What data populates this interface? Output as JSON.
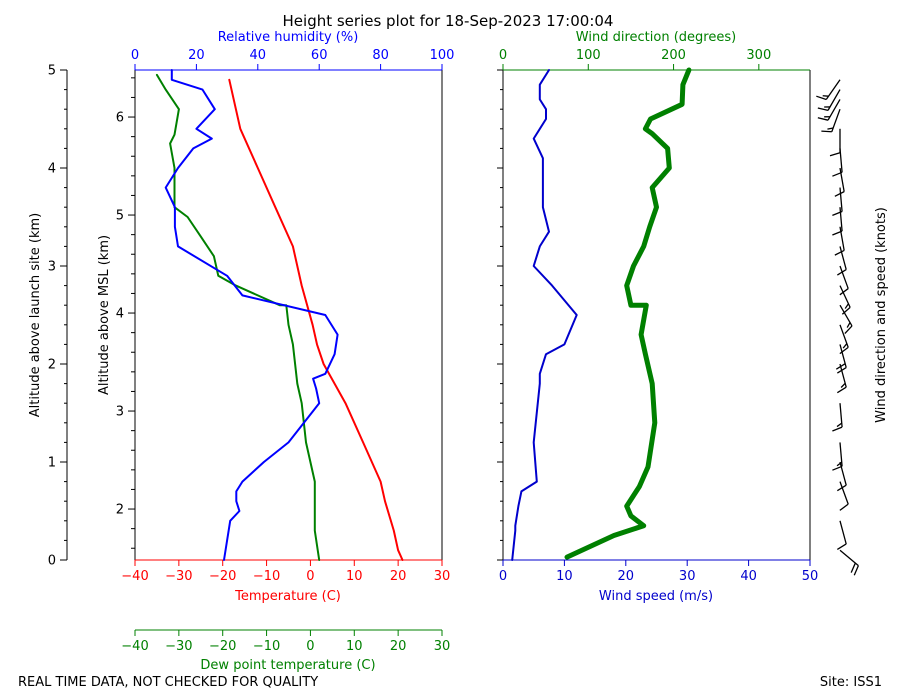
{
  "title": "Height series plot for 18-Sep-2023 17:00:04",
  "footer": {
    "left": "REAL TIME DATA, NOT CHECKED FOR QUALITY",
    "right": "Site: ISS1"
  },
  "colors": {
    "temperature": "#ff0000",
    "dewpoint": "#008000",
    "humidity": "#0000ff",
    "wind_speed": "#0000cc",
    "wind_direction": "#008000",
    "barbs": "#000000"
  },
  "axes": {
    "alt_launch": {
      "label": "Altitude above launch site (km)",
      "range": [
        0,
        5
      ],
      "ticks": [
        0,
        1,
        2,
        3,
        4,
        5
      ]
    },
    "alt_msl": {
      "label": "Altitude above MSL (km)",
      "range": [
        1.48,
        6.48
      ],
      "ticks": [
        {
          "v": 2,
          "t": "2"
        },
        {
          "v": 3,
          "t": "3"
        },
        {
          "v": 4,
          "t": "4"
        },
        {
          "v": 5,
          "t": "5"
        },
        {
          "v": 6,
          "t": "6"
        }
      ]
    },
    "temperature": {
      "label": "Temperature (C)",
      "range": [
        -40,
        30
      ],
      "ticks": [
        {
          "v": -40,
          "t": "−40"
        },
        {
          "v": -30,
          "t": "−30"
        },
        {
          "v": -20,
          "t": "−20"
        },
        {
          "v": -10,
          "t": "−10"
        },
        {
          "v": 0,
          "t": "0"
        },
        {
          "v": 10,
          "t": "10"
        },
        {
          "v": 20,
          "t": "20"
        },
        {
          "v": 30,
          "t": "30"
        }
      ]
    },
    "dewpoint": {
      "label": "Dew point temperature (C)",
      "range": [
        -40,
        30
      ],
      "ticks": [
        {
          "v": -40,
          "t": "−40"
        },
        {
          "v": -30,
          "t": "−30"
        },
        {
          "v": -20,
          "t": "−20"
        },
        {
          "v": -10,
          "t": "−10"
        },
        {
          "v": 0,
          "t": "0"
        },
        {
          "v": 10,
          "t": "10"
        },
        {
          "v": 20,
          "t": "20"
        },
        {
          "v": 30,
          "t": "30"
        }
      ]
    },
    "humidity": {
      "label": "Relative humidity (%)",
      "range": [
        0,
        100
      ],
      "ticks": [
        {
          "v": 0,
          "t": "0"
        },
        {
          "v": 20,
          "t": "20"
        },
        {
          "v": 40,
          "t": "40"
        },
        {
          "v": 60,
          "t": "60"
        },
        {
          "v": 80,
          "t": "80"
        },
        {
          "v": 100,
          "t": "100"
        }
      ]
    },
    "wind_speed": {
      "label": "Wind speed (m/s)",
      "range": [
        0,
        50
      ],
      "ticks": [
        {
          "v": 0,
          "t": "0"
        },
        {
          "v": 10,
          "t": "10"
        },
        {
          "v": 20,
          "t": "20"
        },
        {
          "v": 30,
          "t": "30"
        },
        {
          "v": 40,
          "t": "40"
        },
        {
          "v": 50,
          "t": "50"
        }
      ]
    },
    "wind_direction": {
      "label": "Wind direction (degrees)",
      "range": [
        0,
        360
      ],
      "ticks": [
        {
          "v": 0,
          "t": "0"
        },
        {
          "v": 100,
          "t": "100"
        },
        {
          "v": 200,
          "t": "200"
        },
        {
          "v": 300,
          "t": "300"
        }
      ]
    },
    "barb_label": "Wind direction and speed (knots)"
  },
  "chart_data": {
    "type": "line",
    "title": "Height series plot for 18-Sep-2023 17:00:04",
    "series": [
      {
        "name": "Temperature (C)",
        "x": [
          21,
          20,
          19,
          17,
          16,
          12,
          8,
          3,
          1.5,
          0.5,
          -2,
          -4,
          -8,
          -12,
          -16,
          -17,
          -18.5
        ],
        "y": [
          0,
          0.1,
          0.3,
          0.6,
          0.8,
          1.2,
          1.6,
          2.0,
          2.2,
          2.4,
          2.8,
          3.2,
          3.6,
          4.0,
          4.4,
          4.6,
          4.9
        ]
      },
      {
        "name": "Dew point temperature (C)",
        "x": [
          2,
          1,
          1,
          -1,
          -2,
          -3,
          -3.5,
          -4,
          -5,
          -5.5,
          -7,
          -17,
          -21,
          -22,
          -25,
          -28,
          -31,
          -31,
          -31,
          -32,
          -31,
          -30,
          -33,
          -35
        ],
        "y": [
          0,
          0.3,
          0.8,
          1.2,
          1.6,
          1.8,
          2.0,
          2.2,
          2.4,
          2.6,
          2.6,
          2.8,
          2.9,
          3.1,
          3.3,
          3.5,
          3.6,
          3.8,
          4.0,
          4.25,
          4.34,
          4.6,
          4.8,
          4.95
        ]
      },
      {
        "name": "Relative humidity (%)",
        "x": [
          29,
          30,
          31,
          34,
          33,
          33,
          35,
          42,
          50,
          55,
          60,
          59,
          58,
          62,
          65,
          66,
          62,
          35,
          30,
          14,
          13,
          13,
          10,
          14,
          19,
          25,
          20,
          26,
          22,
          12,
          12
        ],
        "y": [
          0,
          0.2,
          0.4,
          0.5,
          0.6,
          0.7,
          0.8,
          1.0,
          1.2,
          1.4,
          1.6,
          1.75,
          1.85,
          1.9,
          2.1,
          2.3,
          2.5,
          2.7,
          2.9,
          3.2,
          3.4,
          3.6,
          3.8,
          4.0,
          4.2,
          4.3,
          4.4,
          4.6,
          4.8,
          4.9,
          5.0
        ]
      },
      {
        "name": "Wind speed (m/s)",
        "x": [
          1.5,
          2,
          2,
          2.5,
          3,
          5.5,
          5,
          6,
          6,
          7,
          10,
          12,
          8,
          5,
          6,
          7.5,
          6.5,
          6.5,
          6.5,
          5,
          7,
          7,
          6,
          6,
          7.5
        ],
        "y": [
          0,
          0.3,
          0.35,
          0.55,
          0.7,
          0.8,
          1.2,
          1.8,
          1.9,
          2.1,
          2.2,
          2.5,
          2.8,
          3.0,
          3.2,
          3.35,
          3.6,
          3.8,
          4.1,
          4.3,
          4.5,
          4.6,
          4.7,
          4.85,
          5.0
        ]
      },
      {
        "name": "Wind direction (degrees)",
        "x": [
          75,
          130,
          165,
          150,
          145,
          160,
          170,
          178,
          175,
          167,
          162,
          168,
          150,
          145,
          153,
          165,
          172,
          180,
          175,
          195,
          193,
          175,
          167,
          173,
          210,
          211,
          218
        ],
        "y": [
          0.03,
          0.25,
          0.35,
          0.45,
          0.55,
          0.75,
          0.95,
          1.4,
          1.8,
          2.1,
          2.3,
          2.6,
          2.6,
          2.8,
          3.0,
          3.2,
          3.4,
          3.6,
          3.8,
          4.0,
          4.2,
          4.35,
          4.4,
          4.5,
          4.65,
          4.85,
          5.0
        ]
      }
    ],
    "ylabel": "Altitude above launch site (km)",
    "ylim": [
      0,
      5
    ],
    "barbs": {
      "label": "Wind direction and speed (knots)",
      "items": [
        {
          "alt": 0.1,
          "dir": 130,
          "kt": 20
        },
        {
          "alt": 0.4,
          "dir": 165,
          "kt": 10
        },
        {
          "alt": 0.8,
          "dir": 160,
          "kt": 10
        },
        {
          "alt": 1.0,
          "dir": 165,
          "kt": 10
        },
        {
          "alt": 1.2,
          "dir": 175,
          "kt": 15
        },
        {
          "alt": 1.6,
          "dir": 175,
          "kt": 15
        },
        {
          "alt": 2.0,
          "dir": 165,
          "kt": 15
        },
        {
          "alt": 2.2,
          "dir": 165,
          "kt": 20
        },
        {
          "alt": 2.4,
          "dir": 160,
          "kt": 15
        },
        {
          "alt": 2.6,
          "dir": 150,
          "kt": 15
        },
        {
          "alt": 2.8,
          "dir": 155,
          "kt": 15
        },
        {
          "alt": 3.0,
          "dir": 160,
          "kt": 10
        },
        {
          "alt": 3.2,
          "dir": 165,
          "kt": 10
        },
        {
          "alt": 3.4,
          "dir": 170,
          "kt": 10
        },
        {
          "alt": 3.6,
          "dir": 175,
          "kt": 10
        },
        {
          "alt": 3.8,
          "dir": 175,
          "kt": 10
        },
        {
          "alt": 4.0,
          "dir": 170,
          "kt": 10
        },
        {
          "alt": 4.2,
          "dir": 175,
          "kt": 10
        },
        {
          "alt": 4.4,
          "dir": 180,
          "kt": 10
        },
        {
          "alt": 4.6,
          "dir": 200,
          "kt": 15
        },
        {
          "alt": 4.7,
          "dir": 210,
          "kt": 15
        },
        {
          "alt": 4.8,
          "dir": 210,
          "kt": 15
        },
        {
          "alt": 4.9,
          "dir": 215,
          "kt": 15
        }
      ]
    }
  }
}
